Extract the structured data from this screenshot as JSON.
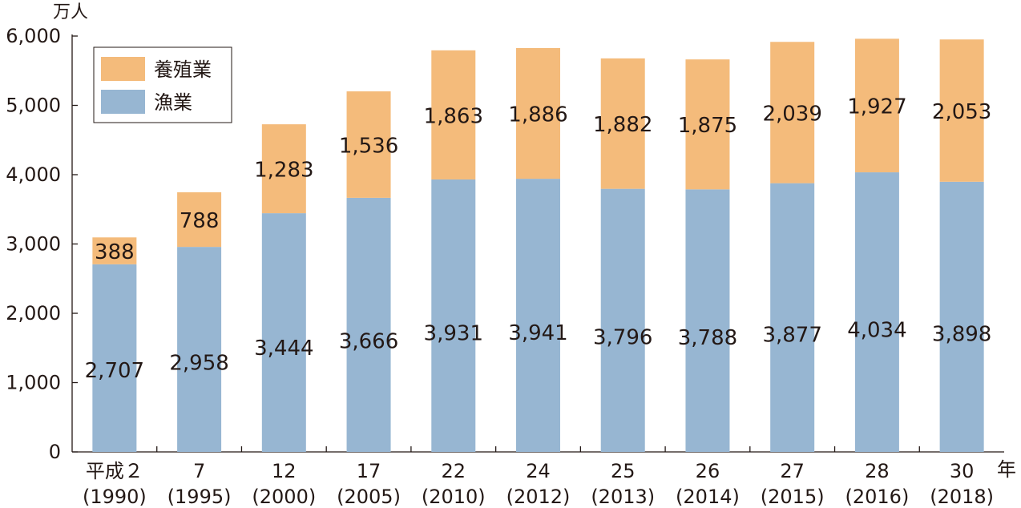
{
  "chart_data": {
    "type": "bar",
    "stacked": true,
    "y_unit": "万人",
    "x_unit": "年",
    "categories": [
      {
        "era": "平成２",
        "year": "(1990)"
      },
      {
        "era": "7",
        "year": "(1995)"
      },
      {
        "era": "12",
        "year": "(2000)"
      },
      {
        "era": "17",
        "year": "(2005)"
      },
      {
        "era": "22",
        "year": "(2010)"
      },
      {
        "era": "24",
        "year": "(2012)"
      },
      {
        "era": "25",
        "year": "(2013)"
      },
      {
        "era": "26",
        "year": "(2014)"
      },
      {
        "era": "27",
        "year": "(2015)"
      },
      {
        "era": "28",
        "year": "(2016)"
      },
      {
        "era": "30",
        "year": "(2018)"
      }
    ],
    "series": [
      {
        "name": "漁業",
        "color": "#97b6d2",
        "values": [
          2707,
          2958,
          3444,
          3666,
          3931,
          3941,
          3796,
          3788,
          3877,
          4034,
          3898
        ]
      },
      {
        "name": "養殖業",
        "color": "#f4bb7b",
        "values": [
          388,
          788,
          1283,
          1536,
          1863,
          1886,
          1882,
          1875,
          2039,
          1927,
          2053
        ]
      }
    ],
    "ylim": [
      0,
      6000
    ],
    "yticks": [
      0,
      1000,
      2000,
      3000,
      4000,
      5000,
      6000
    ],
    "legend_position": "top-left",
    "grid": false
  }
}
